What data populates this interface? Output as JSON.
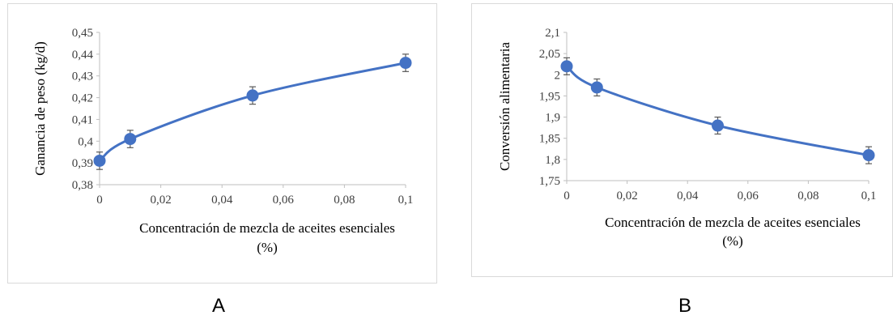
{
  "chart_data": [
    {
      "type": "scatter",
      "panel_label": "A",
      "title": "",
      "xlabel": [
        "Concentración de mezcla de aceites esenciales",
        "(%)"
      ],
      "ylabel": "Ganancia de peso (kg/d)",
      "xlim": [
        0,
        0.1
      ],
      "ylim": [
        0.38,
        0.45
      ],
      "x_ticks": [
        "0",
        "0,02",
        "0,04",
        "0,06",
        "0,08",
        "0,1"
      ],
      "y_ticks": [
        "0,38",
        "0,39",
        "0,4",
        "0,41",
        "0,42",
        "0,43",
        "0,44",
        "0,45"
      ],
      "grid": false,
      "smoothed_line": true,
      "color": "#4472c4",
      "series": [
        {
          "x": [
            0,
            0.01,
            0.05,
            0.1
          ],
          "y": [
            0.391,
            0.401,
            0.421,
            0.436
          ],
          "error": [
            0.004,
            0.004,
            0.004,
            0.004
          ]
        }
      ]
    },
    {
      "type": "scatter",
      "panel_label": "B",
      "title": "",
      "xlabel": [
        "Concentración de mezcla de aceites esenciales",
        "(%)"
      ],
      "ylabel": "Conversión alimentaria",
      "xlim": [
        0,
        0.1
      ],
      "ylim": [
        1.75,
        2.1
      ],
      "x_ticks": [
        "0",
        "0,02",
        "0,04",
        "0,06",
        "0,08",
        "0,1"
      ],
      "y_ticks": [
        "1,75",
        "1,8",
        "1,85",
        "1,9",
        "1,95",
        "2",
        "2,05",
        "2,1"
      ],
      "grid": false,
      "smoothed_line": true,
      "color": "#4472c4",
      "series": [
        {
          "x": [
            0,
            0.01,
            0.05,
            0.1
          ],
          "y": [
            2.02,
            1.97,
            1.88,
            1.81
          ],
          "error": [
            0.02,
            0.02,
            0.02,
            0.02
          ]
        }
      ]
    }
  ]
}
